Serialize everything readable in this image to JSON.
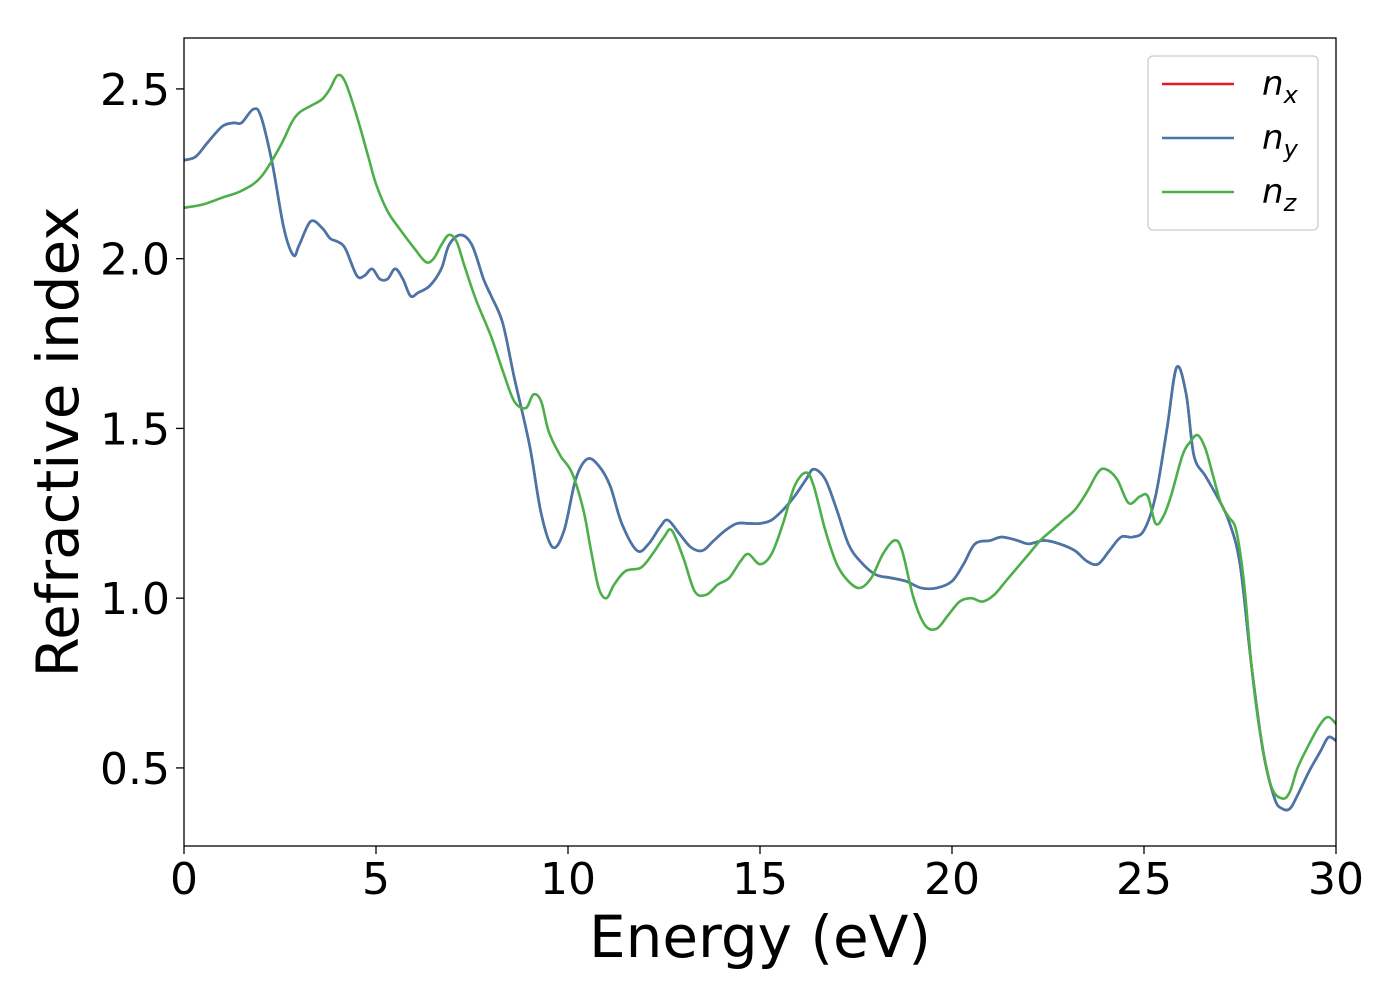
{
  "chart_data": {
    "type": "line",
    "xlabel": "Energy (eV)",
    "ylabel": "Refractive index",
    "xlim": [
      0,
      30
    ],
    "ylim": [
      0.27,
      2.65
    ],
    "x_ticks": [
      0,
      5,
      10,
      15,
      20,
      25,
      30
    ],
    "x_tick_labels": [
      "0",
      "5",
      "10",
      "15",
      "20",
      "25",
      "30"
    ],
    "y_ticks": [
      0.5,
      1.0,
      1.5,
      2.0,
      2.5
    ],
    "y_tick_labels": [
      "0.5",
      "1.0",
      "1.5",
      "2.0",
      "2.5"
    ],
    "grid": false,
    "legend_position": "top-right",
    "series": [
      {
        "name": "n",
        "subscript": "x",
        "color": "#e41a1c",
        "x": [
          0,
          0.3,
          0.6,
          1.0,
          1.3,
          1.5,
          1.8,
          2.0,
          2.3,
          2.6,
          2.85,
          3.0,
          3.3,
          3.6,
          3.8,
          4.0,
          4.2,
          4.5,
          4.7,
          4.9,
          5.1,
          5.3,
          5.5,
          5.7,
          5.9,
          6.1,
          6.4,
          6.7,
          6.9,
          7.2,
          7.5,
          7.8,
          8.0,
          8.3,
          8.6,
          9.0,
          9.3,
          9.6,
          9.9,
          10.2,
          10.5,
          10.8,
          11.1,
          11.4,
          11.8,
          12.1,
          12.4,
          12.6,
          12.9,
          13.2,
          13.5,
          13.8,
          14.1,
          14.4,
          14.7,
          15.0,
          15.3,
          15.6,
          15.9,
          16.2,
          16.4,
          16.7,
          17.0,
          17.3,
          17.6,
          18.0,
          18.4,
          18.8,
          19.2,
          19.6,
          20.0,
          20.3,
          20.6,
          21.0,
          21.3,
          21.7,
          22.0,
          22.4,
          22.8,
          23.2,
          23.5,
          23.8,
          24.1,
          24.4,
          24.7,
          25.0,
          25.3,
          25.6,
          25.85,
          26.1,
          26.3,
          26.6,
          26.9,
          27.2,
          27.5,
          27.8,
          28.1,
          28.4,
          28.6,
          28.8,
          29.0,
          29.3,
          29.6,
          29.8,
          30.0
        ],
        "y": [
          2.29,
          2.3,
          2.34,
          2.39,
          2.4,
          2.4,
          2.44,
          2.42,
          2.28,
          2.09,
          2.01,
          2.04,
          2.11,
          2.09,
          2.06,
          2.05,
          2.03,
          1.95,
          1.95,
          1.97,
          1.94,
          1.94,
          1.97,
          1.94,
          1.89,
          1.9,
          1.92,
          1.97,
          2.04,
          2.07,
          2.04,
          1.94,
          1.89,
          1.81,
          1.65,
          1.45,
          1.25,
          1.15,
          1.2,
          1.35,
          1.41,
          1.39,
          1.33,
          1.22,
          1.14,
          1.16,
          1.21,
          1.23,
          1.19,
          1.15,
          1.14,
          1.17,
          1.2,
          1.22,
          1.22,
          1.22,
          1.23,
          1.26,
          1.3,
          1.35,
          1.38,
          1.35,
          1.26,
          1.16,
          1.11,
          1.07,
          1.06,
          1.05,
          1.03,
          1.03,
          1.05,
          1.1,
          1.16,
          1.17,
          1.18,
          1.17,
          1.16,
          1.17,
          1.16,
          1.14,
          1.11,
          1.1,
          1.14,
          1.18,
          1.18,
          1.2,
          1.3,
          1.5,
          1.68,
          1.6,
          1.42,
          1.36,
          1.3,
          1.23,
          1.1,
          0.8,
          0.55,
          0.41,
          0.38,
          0.38,
          0.42,
          0.49,
          0.55,
          0.59,
          0.58
        ]
      },
      {
        "name": "n",
        "subscript": "y",
        "color": "#4477aa",
        "x": [
          0,
          0.3,
          0.6,
          1.0,
          1.3,
          1.5,
          1.8,
          2.0,
          2.3,
          2.6,
          2.85,
          3.0,
          3.3,
          3.6,
          3.8,
          4.0,
          4.2,
          4.5,
          4.7,
          4.9,
          5.1,
          5.3,
          5.5,
          5.7,
          5.9,
          6.1,
          6.4,
          6.7,
          6.9,
          7.2,
          7.5,
          7.8,
          8.0,
          8.3,
          8.6,
          9.0,
          9.3,
          9.6,
          9.9,
          10.2,
          10.5,
          10.8,
          11.1,
          11.4,
          11.8,
          12.1,
          12.4,
          12.6,
          12.9,
          13.2,
          13.5,
          13.8,
          14.1,
          14.4,
          14.7,
          15.0,
          15.3,
          15.6,
          15.9,
          16.2,
          16.4,
          16.7,
          17.0,
          17.3,
          17.6,
          18.0,
          18.4,
          18.8,
          19.2,
          19.6,
          20.0,
          20.3,
          20.6,
          21.0,
          21.3,
          21.7,
          22.0,
          22.4,
          22.8,
          23.2,
          23.5,
          23.8,
          24.1,
          24.4,
          24.7,
          25.0,
          25.3,
          25.6,
          25.85,
          26.1,
          26.3,
          26.6,
          26.9,
          27.2,
          27.5,
          27.8,
          28.1,
          28.4,
          28.6,
          28.8,
          29.0,
          29.3,
          29.6,
          29.8,
          30.0
        ],
        "y": [
          2.29,
          2.3,
          2.34,
          2.39,
          2.4,
          2.4,
          2.44,
          2.42,
          2.28,
          2.09,
          2.01,
          2.04,
          2.11,
          2.09,
          2.06,
          2.05,
          2.03,
          1.95,
          1.95,
          1.97,
          1.94,
          1.94,
          1.97,
          1.94,
          1.89,
          1.9,
          1.92,
          1.97,
          2.04,
          2.07,
          2.04,
          1.94,
          1.89,
          1.81,
          1.65,
          1.45,
          1.25,
          1.15,
          1.2,
          1.35,
          1.41,
          1.39,
          1.33,
          1.22,
          1.14,
          1.16,
          1.21,
          1.23,
          1.19,
          1.15,
          1.14,
          1.17,
          1.2,
          1.22,
          1.22,
          1.22,
          1.23,
          1.26,
          1.3,
          1.35,
          1.38,
          1.35,
          1.26,
          1.16,
          1.11,
          1.07,
          1.06,
          1.05,
          1.03,
          1.03,
          1.05,
          1.1,
          1.16,
          1.17,
          1.18,
          1.17,
          1.16,
          1.17,
          1.16,
          1.14,
          1.11,
          1.1,
          1.14,
          1.18,
          1.18,
          1.2,
          1.3,
          1.5,
          1.68,
          1.6,
          1.42,
          1.36,
          1.3,
          1.23,
          1.1,
          0.8,
          0.55,
          0.41,
          0.38,
          0.38,
          0.42,
          0.49,
          0.55,
          0.59,
          0.58
        ]
      },
      {
        "name": "n",
        "subscript": "z",
        "color": "#4daf4a",
        "x": [
          0,
          0.5,
          1.0,
          1.5,
          2.0,
          2.5,
          2.8,
          3.0,
          3.3,
          3.6,
          3.8,
          4.0,
          4.2,
          4.5,
          4.8,
          5.0,
          5.3,
          5.6,
          6.0,
          6.3,
          6.5,
          6.7,
          6.9,
          7.1,
          7.3,
          7.6,
          8.0,
          8.3,
          8.6,
          8.9,
          9.1,
          9.3,
          9.5,
          9.8,
          10.1,
          10.4,
          10.6,
          10.8,
          11.0,
          11.2,
          11.5,
          11.9,
          12.2,
          12.5,
          12.7,
          13.0,
          13.3,
          13.6,
          13.9,
          14.2,
          14.5,
          14.7,
          15.0,
          15.3,
          15.6,
          15.9,
          16.2,
          16.4,
          16.7,
          17.0,
          17.3,
          17.6,
          17.9,
          18.2,
          18.5,
          18.7,
          19.0,
          19.3,
          19.6,
          19.9,
          20.2,
          20.5,
          20.8,
          21.1,
          21.4,
          21.7,
          22.0,
          22.3,
          22.6,
          22.9,
          23.2,
          23.5,
          23.8,
          24.0,
          24.3,
          24.6,
          24.9,
          25.1,
          25.3,
          25.5,
          25.7,
          26.0,
          26.2,
          26.4,
          26.6,
          26.8,
          27.0,
          27.2,
          27.4,
          27.6,
          27.8,
          28.0,
          28.3,
          28.6,
          28.8,
          29.0,
          29.3,
          29.6,
          29.8,
          30.0
        ],
        "y": [
          2.15,
          2.16,
          2.18,
          2.2,
          2.24,
          2.33,
          2.4,
          2.43,
          2.45,
          2.47,
          2.5,
          2.54,
          2.52,
          2.42,
          2.3,
          2.22,
          2.14,
          2.09,
          2.03,
          1.99,
          2.0,
          2.04,
          2.07,
          2.05,
          1.98,
          1.88,
          1.77,
          1.67,
          1.58,
          1.56,
          1.6,
          1.58,
          1.49,
          1.42,
          1.37,
          1.26,
          1.14,
          1.03,
          1.0,
          1.04,
          1.08,
          1.09,
          1.13,
          1.18,
          1.2,
          1.12,
          1.02,
          1.01,
          1.04,
          1.06,
          1.11,
          1.13,
          1.1,
          1.13,
          1.22,
          1.33,
          1.37,
          1.33,
          1.2,
          1.1,
          1.05,
          1.03,
          1.06,
          1.13,
          1.17,
          1.14,
          1.0,
          0.92,
          0.91,
          0.95,
          0.99,
          1.0,
          0.99,
          1.01,
          1.05,
          1.09,
          1.13,
          1.17,
          1.2,
          1.23,
          1.26,
          1.31,
          1.37,
          1.38,
          1.35,
          1.28,
          1.3,
          1.3,
          1.22,
          1.24,
          1.3,
          1.42,
          1.46,
          1.48,
          1.44,
          1.36,
          1.28,
          1.24,
          1.2,
          1.05,
          0.8,
          0.62,
          0.45,
          0.41,
          0.43,
          0.5,
          0.57,
          0.63,
          0.65,
          0.63
        ]
      }
    ]
  }
}
